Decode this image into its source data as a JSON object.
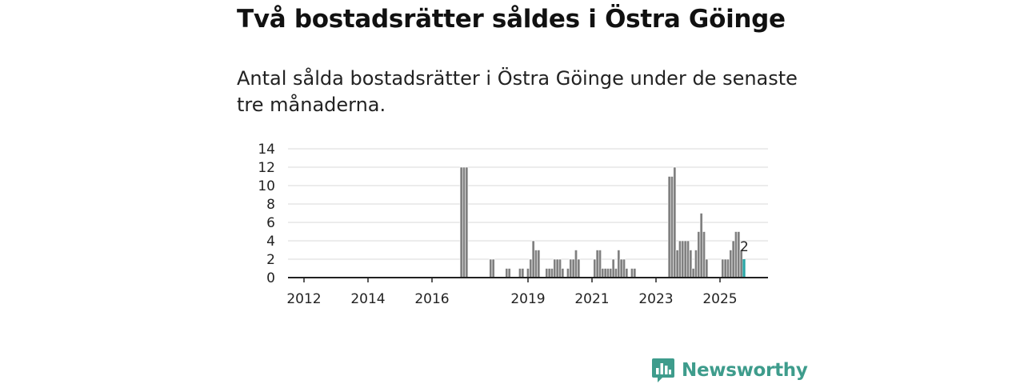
{
  "header": {
    "title": "Två bostadsrätter såldes i Östra Göinge",
    "subtitle": "Antal sålda bostadsrätter i Östra Göinge under de senaste tre månaderna."
  },
  "brand": {
    "name": "Newsworthy",
    "color": "#3e9c8c",
    "icon": "bar-chart-logo-icon"
  },
  "colors": {
    "bar": "#808080",
    "bar_stroke": "#ffffff",
    "highlight": "#2aa5a5",
    "grid": "#d9d9d9",
    "axis": "#222222"
  },
  "chart_data": {
    "type": "bar",
    "title": "Två bostadsrätter såldes i Östra Göinge",
    "xlabel": "",
    "ylabel": "",
    "ylim": [
      0,
      14
    ],
    "y_ticks": [
      0,
      2,
      4,
      6,
      8,
      10,
      12,
      14
    ],
    "x_ticks": [
      "2012",
      "2014",
      "2016",
      "2019",
      "2021",
      "2023",
      "2025"
    ],
    "x_tick_positions": [
      2012.0,
      2014.0,
      2016.0,
      2019.0,
      2021.0,
      2023.0,
      2025.0
    ],
    "x_range": [
      2011.5,
      2026.5
    ],
    "grid": true,
    "series": [
      {
        "name": "Antal sålda bostadsrätter",
        "x": [
          2016.917,
          2017.0,
          2017.083,
          2017.833,
          2017.917,
          2018.333,
          2018.417,
          2018.75,
          2018.833,
          2019.0,
          2019.083,
          2019.167,
          2019.25,
          2019.333,
          2019.583,
          2019.667,
          2019.75,
          2019.833,
          2019.917,
          2020.0,
          2020.083,
          2020.25,
          2020.333,
          2020.417,
          2020.5,
          2020.583,
          2021.083,
          2021.167,
          2021.25,
          2021.333,
          2021.417,
          2021.5,
          2021.583,
          2021.667,
          2021.75,
          2021.833,
          2021.917,
          2022.0,
          2022.083,
          2022.25,
          2022.333,
          2023.417,
          2023.5,
          2023.583,
          2023.667,
          2023.75,
          2023.833,
          2023.917,
          2024.0,
          2024.083,
          2024.167,
          2024.25,
          2024.333,
          2024.417,
          2024.5,
          2024.583,
          2025.083,
          2025.167,
          2025.25,
          2025.333,
          2025.417,
          2025.5,
          2025.583,
          2025.667,
          2025.75
        ],
        "values": [
          12,
          12,
          12,
          2,
          2,
          1,
          1,
          1,
          1,
          1,
          2,
          4,
          3,
          3,
          1,
          1,
          1,
          2,
          2,
          2,
          1,
          1,
          2,
          2,
          3,
          2,
          2,
          3,
          3,
          1,
          1,
          1,
          1,
          2,
          1,
          3,
          2,
          2,
          1,
          1,
          1,
          11,
          11,
          12,
          3,
          4,
          4,
          4,
          4,
          3,
          1,
          3,
          5,
          7,
          5,
          2,
          2,
          2,
          2,
          3,
          4,
          5,
          5,
          3,
          2
        ]
      }
    ],
    "bar_width_years": 0.083,
    "highlight_last": true,
    "annotation": {
      "label": "2",
      "value": 2,
      "x": 2025.75
    }
  }
}
